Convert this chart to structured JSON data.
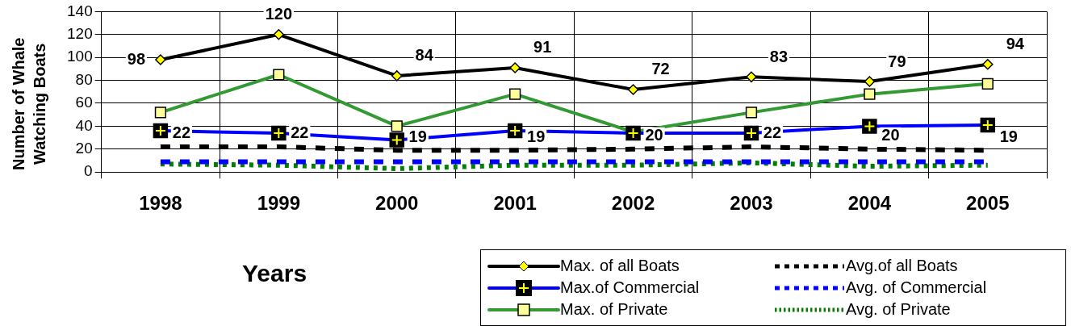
{
  "chart_data": {
    "type": "line",
    "xlabel": "Years",
    "ylabel": "Number of Whale Watching Boats",
    "categories": [
      "1998",
      "1999",
      "2000",
      "2001",
      "2002",
      "2003",
      "2004",
      "2005"
    ],
    "ylim": [
      0,
      140
    ],
    "yticks": [
      0,
      20,
      40,
      60,
      80,
      100,
      120,
      140
    ],
    "grid": true,
    "legend": "bottom right",
    "series": [
      {
        "name": "Max. of all Boats",
        "color": "#000000",
        "marker": "diamond",
        "line_style": "solid",
        "values": [
          98,
          120,
          84,
          91,
          72,
          83,
          79,
          94
        ],
        "value_labels": [
          "98",
          "120",
          "84",
          "91",
          "72",
          "83",
          "79",
          "94"
        ]
      },
      {
        "name": "Avg.of all Boats",
        "color": "#000000",
        "marker": "none",
        "line_style": "dashed",
        "values": [
          22,
          22,
          19,
          19,
          20,
          22,
          20,
          19
        ],
        "value_labels": [
          "22",
          "22",
          "19",
          "19",
          "20",
          "22",
          "20",
          "19"
        ]
      },
      {
        "name": "Max.of Commercial",
        "color": "#0000ff",
        "marker": "cross",
        "line_style": "solid",
        "values": [
          36,
          34,
          28,
          36,
          34,
          34,
          40,
          41
        ]
      },
      {
        "name": "Avg. of Commercial",
        "color": "#0000ff",
        "marker": "none",
        "line_style": "dashed",
        "values": [
          9,
          9,
          9,
          9,
          9,
          9,
          9,
          9
        ]
      },
      {
        "name": "Max. of Private",
        "color": "#339933",
        "marker": "square",
        "line_style": "solid",
        "values": [
          52,
          85,
          40,
          68,
          35,
          52,
          68,
          77
        ]
      },
      {
        "name": "Avg. of Private",
        "color": "#008000",
        "marker": "none",
        "line_style": "dotted",
        "values": [
          7,
          6,
          3,
          6,
          6,
          8,
          5,
          6
        ]
      }
    ]
  }
}
